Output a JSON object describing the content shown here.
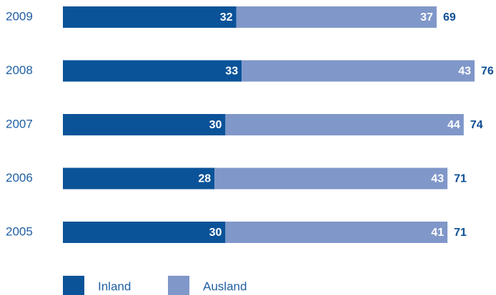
{
  "chart_data": {
    "type": "stacked_barh",
    "categories": [
      "2009",
      "2008",
      "2007",
      "2006",
      "2005"
    ],
    "series": [
      {
        "name": "Inland",
        "color": "#0b5399",
        "values": [
          32,
          33,
          30,
          28,
          30
        ]
      },
      {
        "name": "Ausland",
        "color": "#8097c9",
        "values": [
          37,
          43,
          44,
          43,
          41
        ]
      }
    ],
    "totals": [
      69,
      76,
      74,
      71,
      71
    ]
  }
}
